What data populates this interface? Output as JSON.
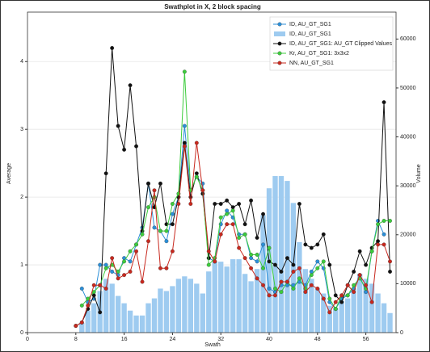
{
  "chart_data": {
    "type": "line",
    "title": "Swathplot in X, 2 block spacing",
    "xlabel": "Swath",
    "ylabel": "Average",
    "y2label": "Volume",
    "x": [
      8,
      9,
      10,
      11,
      12,
      13,
      14,
      15,
      16,
      17,
      18,
      19,
      20,
      21,
      22,
      23,
      24,
      25,
      26,
      27,
      28,
      29,
      30,
      31,
      32,
      33,
      34,
      35,
      36,
      37,
      38,
      39,
      40,
      41,
      42,
      43,
      44,
      45,
      46,
      47,
      48,
      49,
      50,
      51,
      52,
      53,
      54,
      55,
      56,
      57,
      58,
      59,
      60
    ],
    "xlim": [
      0,
      61
    ],
    "xticks": [
      0,
      8,
      16,
      24,
      32,
      40,
      48,
      56
    ],
    "ylim": [
      0,
      4.73
    ],
    "yticks": [
      0,
      1,
      2,
      3,
      4
    ],
    "y2lim": [
      0,
      65500
    ],
    "y2ticks": [
      0,
      10000,
      20000,
      30000,
      40000,
      50000,
      60000
    ],
    "grid": true,
    "legend": "upper right",
    "series": [
      {
        "name": "ID, AU_GT_SG1",
        "type": "line",
        "color": "#2b8fd8",
        "values": [
          null,
          0.65,
          0.45,
          0.5,
          1.0,
          1.0,
          0.9,
          0.85,
          1.1,
          1.05,
          1.3,
          1.55,
          2.2,
          1.55,
          1.5,
          1.35,
          1.75,
          2.0,
          3.05,
          2.1,
          2.3,
          2.2,
          1.1,
          1.05,
          1.6,
          1.8,
          1.7,
          1.45,
          1.45,
          1.1,
          1.05,
          1.3,
          0.65,
          0.6,
          0.7,
          0.7,
          0.7,
          0.75,
          0.7,
          0.9,
          1.05,
          0.95,
          0.45,
          0.35,
          0.5,
          0.55,
          0.65,
          0.85,
          0.6,
          1.2,
          1.65,
          1.45,
          null
        ]
      },
      {
        "name": "ID, AU_GT_SG1",
        "type": "bar",
        "axis": "y2",
        "color": "#9ecbf0",
        "values": [
          null,
          2000,
          4500,
          6000,
          8500,
          11000,
          10000,
          7500,
          6000,
          4500,
          3500,
          3500,
          6000,
          7000,
          9000,
          8500,
          9500,
          11000,
          11500,
          11000,
          10000,
          8000,
          12500,
          14500,
          14500,
          13500,
          15000,
          15000,
          12000,
          10500,
          13000,
          24000,
          29500,
          32000,
          32000,
          31000,
          26500,
          18500,
          13000,
          11000,
          9000,
          8000,
          5500,
          5000,
          6500,
          7000,
          9000,
          12000,
          11000,
          10000,
          8000,
          6000,
          4000
        ]
      },
      {
        "name": "ID, AU_GT_SG1: AU_GT Clipped Values",
        "type": "line",
        "color": "#111111",
        "values": [
          0.1,
          0.15,
          0.35,
          0.55,
          0.3,
          2.35,
          4.2,
          3.05,
          2.7,
          3.65,
          2.75,
          1.5,
          2.2,
          1.85,
          2.2,
          1.6,
          1.6,
          2.0,
          2.8,
          2.0,
          2.35,
          2.05,
          1.1,
          1.9,
          1.9,
          1.95,
          1.85,
          1.9,
          1.6,
          1.95,
          1.4,
          1.75,
          1.05,
          1.0,
          0.9,
          1.1,
          1.0,
          1.9,
          1.3,
          1.25,
          1.3,
          1.45,
          1.0,
          0.55,
          0.45,
          0.7,
          0.9,
          1.2,
          1.0,
          1.25,
          1.35,
          3.4,
          0.9
        ]
      },
      {
        "name": "Kr, AU_GT_SG1: 3x3x2",
        "type": "line",
        "color": "#3ccc3c",
        "values": [
          null,
          0.4,
          0.5,
          0.6,
          0.7,
          0.95,
          1.0,
          0.9,
          1.05,
          1.2,
          1.3,
          1.45,
          1.85,
          2.0,
          1.5,
          1.5,
          1.9,
          2.05,
          3.85,
          2.1,
          2.3,
          2.1,
          1.0,
          1.1,
          1.7,
          1.75,
          1.8,
          1.4,
          1.45,
          1.15,
          1.15,
          0.95,
          1.25,
          0.65,
          0.6,
          0.75,
          0.65,
          0.8,
          0.65,
          0.85,
          0.95,
          1.05,
          0.5,
          0.35,
          0.55,
          0.55,
          0.7,
          0.8,
          0.65,
          1.2,
          1.6,
          1.65,
          1.65
        ]
      },
      {
        "name": "NN, AU_GT_SG1",
        "type": "line",
        "color": "#c8281e",
        "values": [
          0.1,
          0.15,
          0.4,
          0.7,
          0.7,
          0.65,
          1.1,
          0.8,
          0.85,
          0.9,
          1.2,
          0.75,
          1.35,
          2.1,
          0.95,
          0.95,
          1.2,
          1.9,
          2.75,
          1.9,
          2.8,
          2.1,
          1.2,
          1.05,
          1.45,
          1.6,
          1.6,
          1.25,
          1.1,
          0.95,
          0.8,
          0.7,
          0.55,
          0.55,
          0.75,
          0.75,
          0.9,
          0.95,
          0.6,
          0.7,
          0.65,
          0.5,
          0.3,
          0.45,
          0.55,
          0.7,
          0.6,
          0.85,
          0.7,
          0.45,
          1.3,
          1.3,
          1.05
        ]
      }
    ]
  }
}
